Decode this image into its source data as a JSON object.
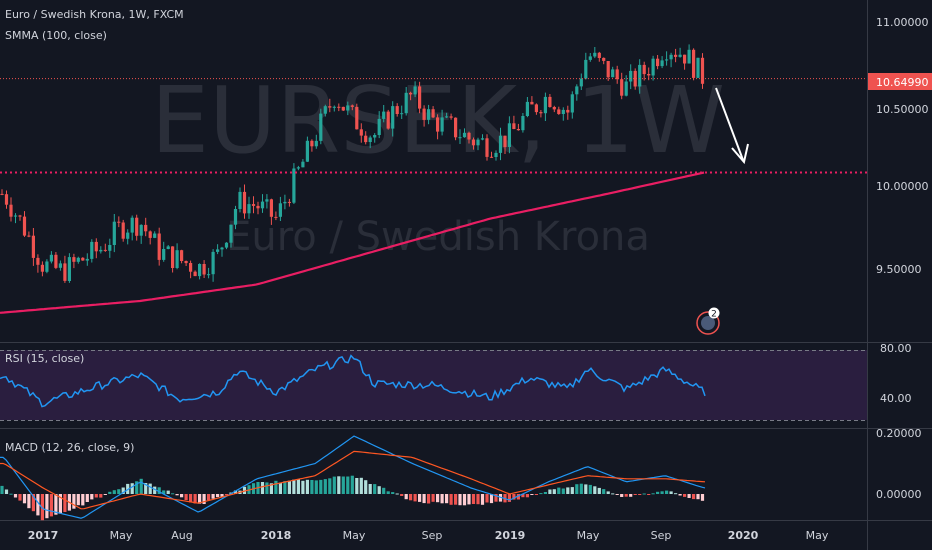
{
  "header": {
    "title": "Euro / Swedish Krona, 1W, FXCM",
    "indicator": "SMMA (100, close)"
  },
  "watermark": {
    "symbol": "EURSEK, 1W",
    "name": "Euro / Swedish Krona"
  },
  "price_axis": {
    "ticks": [
      "11.00000",
      "10.50000",
      "10.00000",
      "9.50000"
    ],
    "current_price_label": "10.64990"
  },
  "rsi": {
    "label": "RSI (15, close)",
    "ticks": [
      "80.00",
      "40.00"
    ]
  },
  "macd": {
    "label": "MACD (12, 26, close, 9)",
    "ticks": [
      "0.20000",
      "0.00000"
    ]
  },
  "time_axis": {
    "labels": [
      {
        "text": "2017",
        "bold": true
      },
      {
        "text": "May",
        "bold": false
      },
      {
        "text": "Aug",
        "bold": false
      },
      {
        "text": "2018",
        "bold": true
      },
      {
        "text": "May",
        "bold": false
      },
      {
        "text": "Sep",
        "bold": false
      },
      {
        "text": "2019",
        "bold": true
      },
      {
        "text": "May",
        "bold": false
      },
      {
        "text": "Sep",
        "bold": false
      },
      {
        "text": "2020",
        "bold": true
      },
      {
        "text": "May",
        "bold": false
      }
    ]
  },
  "event_badge": {
    "count": "2"
  },
  "colors": {
    "background": "#131722",
    "up": "#26a69a",
    "down": "#ef5350",
    "smma": "#e91e63",
    "rsi": "#2196f3",
    "rsi_band": "#2a1e3f",
    "macd": "#2196f3",
    "signal": "#ff5722",
    "price_line": "#ef5350"
  },
  "chart_data": {
    "type": "candlestick",
    "timeframe": "1W",
    "price_ylim": [
      9.2,
      11.1
    ],
    "current_price": 10.6499,
    "support_level": 10.08,
    "projection": "arrow down from ~10.62 toward ~10.10",
    "price_keypoints": [
      {
        "date": "2016-11",
        "close": 9.95
      },
      {
        "date": "2016-12",
        "close": 9.75
      },
      {
        "date": "2017-01",
        "close": 9.52
      },
      {
        "date": "2017-02",
        "close": 9.48
      },
      {
        "date": "2017-03",
        "close": 9.55
      },
      {
        "date": "2017-04",
        "close": 9.62
      },
      {
        "date": "2017-05",
        "close": 9.75
      },
      {
        "date": "2017-06",
        "close": 9.78
      },
      {
        "date": "2017-07",
        "close": 9.6
      },
      {
        "date": "2017-08",
        "close": 9.55
      },
      {
        "date": "2017-09",
        "close": 9.5
      },
      {
        "date": "2017-10",
        "close": 9.58
      },
      {
        "date": "2017-11",
        "close": 9.9
      },
      {
        "date": "2017-12",
        "close": 9.88
      },
      {
        "date": "2018-01",
        "close": 9.8
      },
      {
        "date": "2018-02",
        "close": 10.05
      },
      {
        "date": "2018-03",
        "close": 10.3
      },
      {
        "date": "2018-04",
        "close": 10.55
      },
      {
        "date": "2018-05",
        "close": 10.4
      },
      {
        "date": "2018-06",
        "close": 10.3
      },
      {
        "date": "2018-07",
        "close": 10.45
      },
      {
        "date": "2018-08",
        "close": 10.55
      },
      {
        "date": "2018-09",
        "close": 10.4
      },
      {
        "date": "2018-10",
        "close": 10.35
      },
      {
        "date": "2018-11",
        "close": 10.28
      },
      {
        "date": "2018-12",
        "close": 10.25
      },
      {
        "date": "2019-01",
        "close": 10.3
      },
      {
        "date": "2019-02",
        "close": 10.45
      },
      {
        "date": "2019-03",
        "close": 10.55
      },
      {
        "date": "2019-04",
        "close": 10.45
      },
      {
        "date": "2019-05",
        "close": 10.8
      },
      {
        "date": "2019-06",
        "close": 10.7
      },
      {
        "date": "2019-07",
        "close": 10.6
      },
      {
        "date": "2019-08",
        "close": 10.7
      },
      {
        "date": "2019-09",
        "close": 10.85
      },
      {
        "date": "2019-10",
        "close": 10.8
      },
      {
        "date": "2019-11",
        "close": 10.65
      }
    ],
    "smma_keypoints": [
      {
        "date": "2016-10",
        "value": 9.22
      },
      {
        "date": "2017-06",
        "value": 9.3
      },
      {
        "date": "2017-12",
        "value": 9.4
      },
      {
        "date": "2018-06",
        "value": 9.6
      },
      {
        "date": "2018-12",
        "value": 9.8
      },
      {
        "date": "2019-06",
        "value": 9.95
      },
      {
        "date": "2019-11",
        "value": 10.08
      }
    ],
    "rsi_ylim": [
      25,
      85
    ],
    "rsi_levels": [
      80,
      30
    ],
    "rsi_keypoints": [
      {
        "date": "2016-11",
        "value": 62
      },
      {
        "date": "2017-01",
        "value": 42
      },
      {
        "date": "2017-04",
        "value": 55
      },
      {
        "date": "2017-06",
        "value": 62
      },
      {
        "date": "2017-08",
        "value": 45
      },
      {
        "date": "2017-10",
        "value": 50
      },
      {
        "date": "2017-11",
        "value": 65
      },
      {
        "date": "2018-01",
        "value": 50
      },
      {
        "date": "2018-03",
        "value": 66
      },
      {
        "date": "2018-05",
        "value": 75
      },
      {
        "date": "2018-06",
        "value": 56
      },
      {
        "date": "2018-09",
        "value": 55
      },
      {
        "date": "2018-12",
        "value": 46
      },
      {
        "date": "2019-02",
        "value": 60
      },
      {
        "date": "2019-04",
        "value": 52
      },
      {
        "date": "2019-05",
        "value": 66
      },
      {
        "date": "2019-07",
        "value": 52
      },
      {
        "date": "2019-09",
        "value": 66
      },
      {
        "date": "2019-11",
        "value": 50
      }
    ],
    "macd_ylim": [
      -0.1,
      0.25
    ],
    "macd_keypoints": [
      {
        "date": "2016-11",
        "macd": 0.12,
        "signal": 0.1
      },
      {
        "date": "2017-01",
        "macd": -0.05,
        "signal": 0.02
      },
      {
        "date": "2017-03",
        "macd": -0.08,
        "signal": -0.05
      },
      {
        "date": "2017-06",
        "macd": 0.04,
        "signal": 0.0
      },
      {
        "date": "2017-09",
        "macd": -0.06,
        "signal": -0.03
      },
      {
        "date": "2017-12",
        "macd": 0.05,
        "signal": 0.02
      },
      {
        "date": "2018-03",
        "macd": 0.1,
        "signal": 0.06
      },
      {
        "date": "2018-05",
        "macd": 0.19,
        "signal": 0.14
      },
      {
        "date": "2018-08",
        "macd": 0.1,
        "signal": 0.12
      },
      {
        "date": "2018-11",
        "macd": 0.02,
        "signal": 0.05
      },
      {
        "date": "2019-01",
        "macd": -0.02,
        "signal": 0.0
      },
      {
        "date": "2019-03",
        "macd": 0.04,
        "signal": 0.03
      },
      {
        "date": "2019-05",
        "macd": 0.09,
        "signal": 0.06
      },
      {
        "date": "2019-07",
        "macd": 0.04,
        "signal": 0.05
      },
      {
        "date": "2019-09",
        "macd": 0.06,
        "signal": 0.05
      },
      {
        "date": "2019-11",
        "macd": 0.02,
        "signal": 0.04
      }
    ]
  }
}
